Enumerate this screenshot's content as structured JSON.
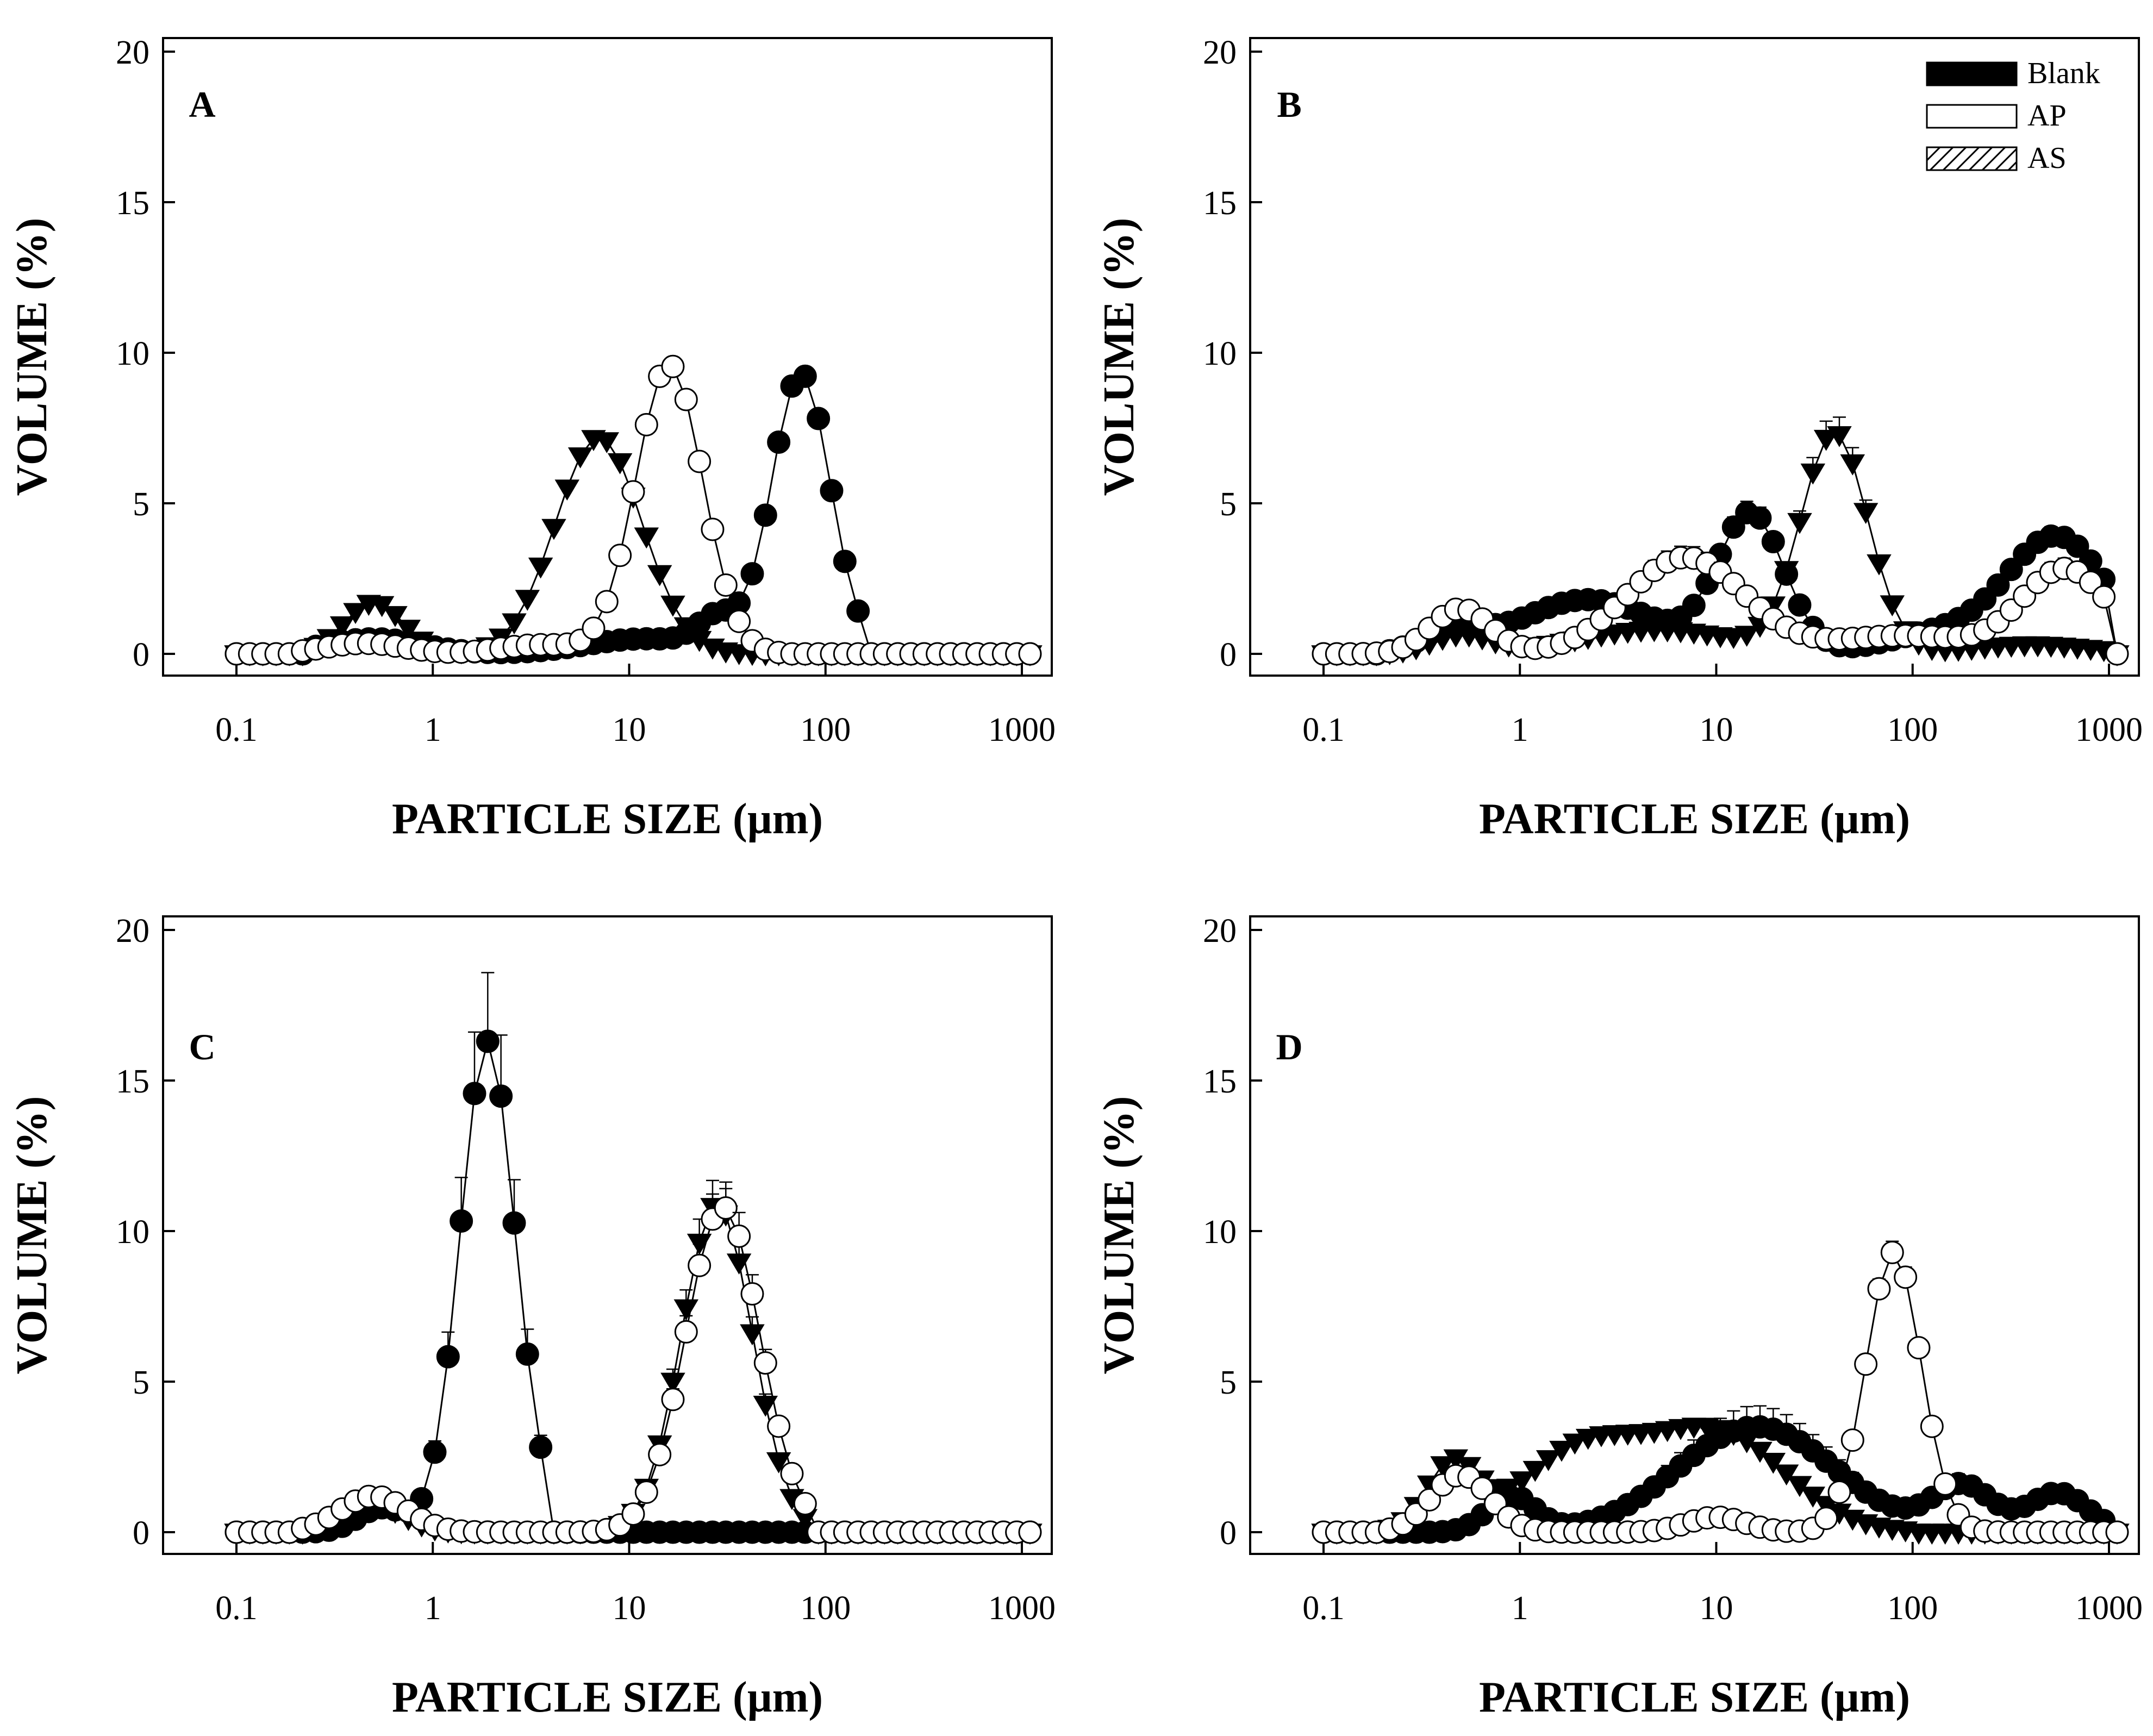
{
  "legend": {
    "entries": [
      {
        "name": "Blank",
        "swatch": "solid",
        "color": "#000000"
      },
      {
        "name": "AP",
        "swatch": "open",
        "color": "#ffffff"
      },
      {
        "name": "AS",
        "swatch": "hatched",
        "color": "#000000"
      }
    ]
  },
  "chart_data": [
    {
      "type": "line",
      "panel": "A",
      "xlabel": "PARTICLE SIZE (µm)",
      "ylabel": "VOLUME (%)",
      "xscale": "log",
      "xlim": [
        0.1,
        1000
      ],
      "ylim": [
        0,
        20
      ],
      "xticks": [
        0.1,
        1,
        10,
        100,
        1000
      ],
      "xtick_labels": [
        "0.1",
        "1",
        "10",
        "100",
        "1000"
      ],
      "yticks": [
        0,
        5,
        10,
        15,
        20
      ],
      "ytick_labels": [
        "0",
        "5",
        "10",
        "15",
        "20"
      ],
      "series": [
        {
          "name": "Blank",
          "marker": "circle-filled",
          "peaks": [
            [
              0.5,
              0.5,
              0.25
            ],
            [
              12,
              0.5,
              0.3
            ],
            [
              28,
              1.0,
              0.1
            ],
            [
              75,
              9.3,
              0.15
            ]
          ],
          "cutoff": [
            0.25,
            170
          ],
          "err": 0.1
        },
        {
          "name": "AP",
          "marker": "circle-open",
          "peaks": [
            [
              0.45,
              0.35,
              0.2
            ],
            [
              16,
              9.6,
              0.17
            ],
            [
              3.5,
              0.3,
              0.2
            ]
          ],
          "cutoff": [
            0.2,
            60
          ],
          "err": 0.1
        },
        {
          "name": "AS",
          "marker": "triangle-down",
          "peaks": [
            [
              0.5,
              1.7,
              0.15
            ],
            [
              7,
              7.2,
              0.22
            ]
          ],
          "cutoff": [
            0.22,
            45
          ],
          "err": 0.1
        }
      ]
    },
    {
      "type": "line",
      "panel": "B",
      "xlabel": "PARTICLE SIZE (µm)",
      "ylabel": "VOLUME (%)",
      "xscale": "log",
      "xlim": [
        0.1,
        1000
      ],
      "ylim": [
        0,
        20
      ],
      "xticks": [
        0.1,
        1,
        10,
        100,
        1000
      ],
      "xtick_labels": [
        "0.1",
        "1",
        "10",
        "100",
        "1000"
      ],
      "yticks": [
        0,
        5,
        10,
        15,
        20
      ],
      "ytick_labels": [
        "0",
        "5",
        "10",
        "15",
        "20"
      ],
      "series": [
        {
          "name": "Blank",
          "marker": "circle-filled",
          "peaks": [
            [
              0.45,
              0.7,
              0.15
            ],
            [
              2.2,
              1.8,
              0.35
            ],
            [
              15,
              4.6,
              0.17
            ],
            [
              550,
              3.8,
              0.25
            ],
            [
              150,
              0.7,
              0.3
            ]
          ],
          "cutoff": [
            0.2,
            1000
          ],
          "err": 0.4
        },
        {
          "name": "AP",
          "marker": "circle-open",
          "peaks": [
            [
              0.5,
              1.5,
              0.15
            ],
            [
              7,
              3.2,
              0.3
            ],
            [
              600,
              2.8,
              0.22
            ],
            [
              90,
              0.6,
              0.35
            ]
          ],
          "cutoff": [
            0.15,
            1000
          ],
          "err": 0.6
        },
        {
          "name": "AS",
          "marker": "triangle-down",
          "peaks": [
            [
              0.5,
              0.6,
              0.15
            ],
            [
              40,
              7.3,
              0.17
            ],
            [
              5,
              0.8,
              0.4
            ],
            [
              400,
              0.3,
              0.3
            ]
          ],
          "cutoff": [
            0.2,
            1000
          ],
          "err": 0.4
        }
      ]
    },
    {
      "type": "line",
      "panel": "C",
      "xlabel": "PARTICLE SIZE (µm)",
      "ylabel": "VOLUME (%)",
      "xscale": "log",
      "xlim": [
        0.1,
        1000
      ],
      "ylim": [
        0,
        20
      ],
      "xticks": [
        0.1,
        1,
        10,
        100,
        1000
      ],
      "xtick_labels": [
        "0.1",
        "1",
        "10",
        "100",
        "1000"
      ],
      "yticks": [
        0,
        5,
        10,
        15,
        20
      ],
      "ytick_labels": [
        "0",
        "5",
        "10",
        "15",
        "20"
      ],
      "series": [
        {
          "name": "Blank",
          "marker": "circle-filled",
          "peaks": [
            [
              1.9,
              16.3,
              0.14
            ],
            [
              0.55,
              0.8,
              0.12
            ],
            [
              3.5,
              0.3,
              0.08
            ]
          ],
          "cutoff": [
            0.25,
            3.8
          ],
          "err": 0.7
        },
        {
          "name": "AP",
          "marker": "circle-open",
          "peaks": [
            [
              0.5,
              1.2,
              0.17
            ],
            [
              30,
              10.8,
              0.19
            ]
          ],
          "cutoff": [
            0.2,
            90
          ],
          "err": 0.4
        },
        {
          "name": "AS",
          "marker": "triangle-down",
          "peaks": [
            [
              0.5,
              0.9,
              0.15
            ],
            [
              28,
              10.9,
              0.18
            ]
          ],
          "cutoff": [
            0.22,
            80
          ],
          "err": 0.4
        }
      ]
    },
    {
      "type": "line",
      "panel": "D",
      "xlabel": "PARTICLE SIZE (µm)",
      "ylabel": "VOLUME (%)",
      "xscale": "log",
      "xlim": [
        0.1,
        1000
      ],
      "ylim": [
        0,
        20
      ],
      "xticks": [
        0.1,
        1,
        10,
        100,
        1000
      ],
      "xtick_labels": [
        "0.1",
        "1",
        "10",
        "100",
        "1000"
      ],
      "yticks": [
        0,
        5,
        10,
        15,
        20
      ],
      "ytick_labels": [
        "0",
        "5",
        "10",
        "15",
        "20"
      ],
      "series": [
        {
          "name": "Blank",
          "marker": "circle-filled",
          "peaks": [
            [
              16,
              3.5,
              0.4
            ],
            [
              0.9,
              1.2,
              0.12
            ],
            [
              180,
              1.5,
              0.15
            ],
            [
              550,
              1.3,
              0.15
            ]
          ],
          "cutoff": [
            0.4,
            1000
          ],
          "err": 1.0
        },
        {
          "name": "AP",
          "marker": "circle-open",
          "peaks": [
            [
              0.5,
              1.9,
              0.15
            ],
            [
              80,
              9.3,
              0.14
            ],
            [
              10,
              0.5,
              0.15
            ]
          ],
          "cutoff": [
            0.2,
            1000
          ],
          "err": 0.2
        },
        {
          "name": "AS",
          "marker": "triangle-down",
          "peaks": [
            [
              0.45,
              2.2,
              0.13
            ],
            [
              2,
              2.6,
              0.3
            ],
            [
              10,
              3.3,
              0.35
            ]
          ],
          "cutoff": [
            0.2,
            100
          ],
          "err": 0.3
        }
      ]
    }
  ]
}
